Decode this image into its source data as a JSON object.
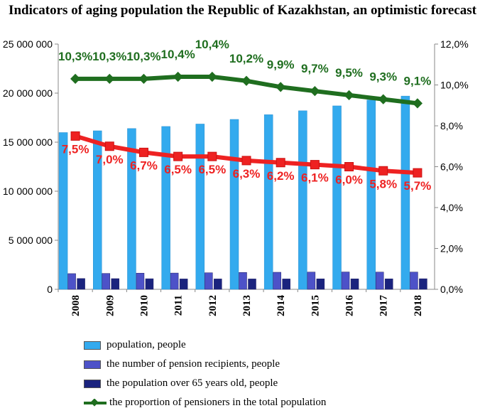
{
  "chart_data": {
    "type": "bar",
    "title": "Indicators of aging population the Republic of Kazakhstan, an optimistic forecast",
    "categories": [
      "2008",
      "2009",
      "2010",
      "2011",
      "2012",
      "2013",
      "2014",
      "2015",
      "2016",
      "2017",
      "2018"
    ],
    "left_axis": {
      "ylim": [
        0,
        25000000
      ],
      "ticks": [
        0,
        5000000,
        10000000,
        15000000,
        20000000,
        25000000
      ],
      "tick_labels": [
        "0",
        "5 000 000",
        "10 000 000",
        "15 000 000",
        "20 000 000",
        "25 000 000"
      ]
    },
    "right_axis": {
      "ylim": [
        0,
        12
      ],
      "ticks": [
        0,
        2,
        4,
        6,
        8,
        10,
        12
      ],
      "tick_labels": [
        "0,0%",
        "2,0%",
        "4,0%",
        "6,0%",
        "8,0%",
        "10,0%",
        "12,0%"
      ]
    },
    "series": [
      {
        "name": "population, people",
        "kind": "bar",
        "axis": "left",
        "color": "#33aaee",
        "values": [
          15980000,
          16160000,
          16390000,
          16600000,
          16850000,
          17320000,
          17800000,
          18200000,
          18700000,
          19300000,
          19700000
        ]
      },
      {
        "name": "the number of pension recipients, people",
        "kind": "bar",
        "axis": "left",
        "color": "#4d52c8",
        "values": [
          1600000,
          1620000,
          1650000,
          1660000,
          1690000,
          1720000,
          1740000,
          1760000,
          1770000,
          1760000,
          1760000
        ]
      },
      {
        "name": "the population over 65 years old, people",
        "kind": "bar",
        "axis": "left",
        "color": "#1a237e",
        "values": [
          1100000,
          1090000,
          1080000,
          1060000,
          1060000,
          1060000,
          1060000,
          1070000,
          1070000,
          1070000,
          1080000
        ]
      },
      {
        "name": "the proportion of pensioners in the total population",
        "kind": "line",
        "axis": "right",
        "color": "#1f6e1f",
        "values": [
          10.3,
          10.3,
          10.3,
          10.4,
          10.4,
          10.2,
          9.9,
          9.7,
          9.5,
          9.3,
          9.1
        ],
        "labels": [
          "10,3%",
          "10,3%",
          "10,3%",
          "10,4%",
          "10,4%",
          "10,2%",
          "9,9%",
          "9,7%",
          "9,5%",
          "9,3%",
          "9,1%"
        ]
      },
      {
        "kind": "line",
        "axis": "right",
        "color": "#ee2222",
        "values": [
          7.5,
          7.0,
          6.7,
          6.5,
          6.5,
          6.3,
          6.2,
          6.1,
          6.0,
          5.8,
          5.7
        ],
        "labels": [
          "7,5%",
          "7,0%",
          "6,7%",
          "6,5%",
          "6,5%",
          "6,3%",
          "6,2%",
          "6,1%",
          "6,0%",
          "5,8%",
          "5,7%"
        ]
      }
    ],
    "legend_position": "bottom",
    "grid": false
  }
}
